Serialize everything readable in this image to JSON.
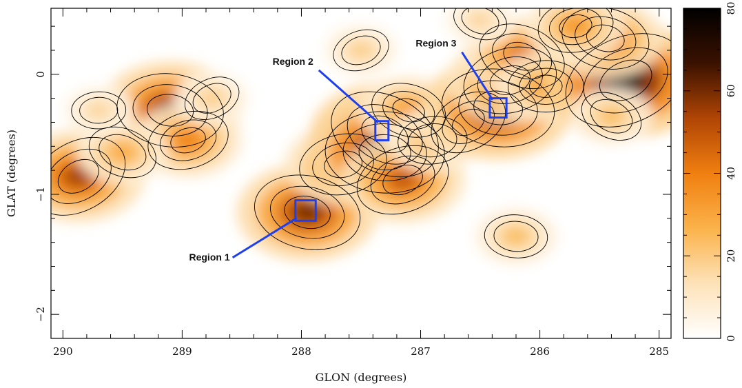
{
  "chart_data": {
    "type": "heatmap",
    "title": "",
    "xlabel": "GLON (degrees)",
    "ylabel": "GLAT (degrees)",
    "xlim": [
      290.1,
      284.9
    ],
    "ylim": [
      -2.2,
      0.55
    ],
    "x_ticks": [
      290,
      289,
      288,
      287,
      286,
      285
    ],
    "x_tick_labels": [
      "290",
      "289",
      "288",
      "287",
      "286",
      "285"
    ],
    "y_ticks": [
      0,
      -1,
      -2
    ],
    "y_tick_labels": [
      "0",
      "−1",
      "−2"
    ],
    "colorbar": {
      "range": [
        0,
        80
      ],
      "ticks": [
        0,
        20,
        40,
        60,
        80
      ],
      "tick_labels": [
        "0",
        "20",
        "40",
        "60",
        "80"
      ],
      "colors": [
        "#ffffff",
        "#fde2b8",
        "#fbb24a",
        "#f07f10",
        "#b04505",
        "#3a1100",
        "#000000"
      ]
    },
    "regions": [
      {
        "label": "Region 1",
        "lon": [
          288.05,
          287.88
        ],
        "lat": [
          -1.05,
          -1.22
        ],
        "label_lon": 288.6,
        "label_lat": -1.55
      },
      {
        "label": "Region 2",
        "lon": [
          287.38,
          287.27
        ],
        "lat": [
          -0.39,
          -0.55
        ],
        "label_lon": 287.9,
        "label_lat": 0.08
      },
      {
        "label": "Region 3",
        "lon": [
          286.42,
          286.28
        ],
        "lat": [
          -0.2,
          -0.36
        ],
        "label_lon": 286.7,
        "label_lat": 0.23
      }
    ],
    "region_color": "#1e3ff0",
    "emission_peaks": [
      {
        "lon": 289.87,
        "lat": -0.85,
        "value": 55
      },
      {
        "lon": 289.1,
        "lat": -0.3,
        "value": 60
      },
      {
        "lon": 288.95,
        "lat": -0.55,
        "value": 40
      },
      {
        "lon": 289.5,
        "lat": -0.65,
        "value": 30
      },
      {
        "lon": 289.7,
        "lat": -0.3,
        "value": 18
      },
      {
        "lon": 288.75,
        "lat": -0.2,
        "value": 20
      },
      {
        "lon": 287.95,
        "lat": -1.15,
        "value": 60
      },
      {
        "lon": 287.65,
        "lat": -0.75,
        "value": 45
      },
      {
        "lon": 287.3,
        "lat": -0.5,
        "value": 65
      },
      {
        "lon": 287.3,
        "lat": -0.65,
        "value": 70
      },
      {
        "lon": 287.15,
        "lat": -0.88,
        "value": 50
      },
      {
        "lon": 287.1,
        "lat": -0.3,
        "value": 35
      },
      {
        "lon": 286.9,
        "lat": -0.55,
        "value": 30
      },
      {
        "lon": 286.6,
        "lat": -0.4,
        "value": 38
      },
      {
        "lon": 286.35,
        "lat": -0.28,
        "value": 65
      },
      {
        "lon": 286.25,
        "lat": -0.05,
        "value": 50
      },
      {
        "lon": 286.15,
        "lat": 0.15,
        "value": 45
      },
      {
        "lon": 285.95,
        "lat": -0.1,
        "value": 35
      },
      {
        "lon": 285.28,
        "lat": -0.05,
        "value": 75
      },
      {
        "lon": 285.45,
        "lat": 0.3,
        "value": 45
      },
      {
        "lon": 285.7,
        "lat": 0.4,
        "value": 35
      },
      {
        "lon": 285.4,
        "lat": -0.35,
        "value": 25
      },
      {
        "lon": 286.2,
        "lat": -1.35,
        "value": 25
      },
      {
        "lon": 287.5,
        "lat": 0.2,
        "value": 20
      },
      {
        "lon": 286.5,
        "lat": 0.45,
        "value": 18
      }
    ]
  }
}
